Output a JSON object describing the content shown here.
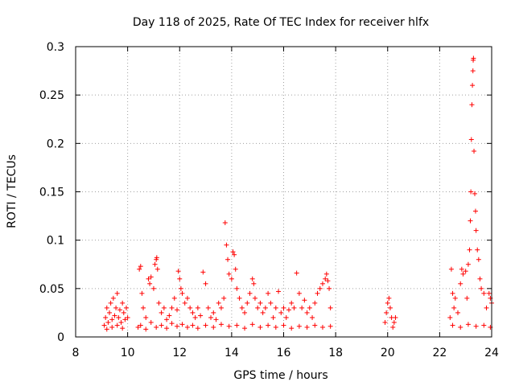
{
  "chart_data": {
    "type": "scatter",
    "title": "Day 118 of 2025, Rate Of TEC Index for receiver hlfx",
    "xlabel": "GPS time / hours",
    "ylabel": "ROTI / TECUs",
    "xlim": [
      8,
      24
    ],
    "ylim": [
      0,
      0.3
    ],
    "xticks": [
      8,
      10,
      12,
      14,
      16,
      18,
      20,
      22,
      24
    ],
    "xtick_labels": [
      "8",
      "10",
      "12",
      "14",
      "16",
      "18",
      "20",
      "22",
      "24"
    ],
    "yticks": [
      0,
      0.05,
      0.1,
      0.15,
      0.2,
      0.25,
      0.3
    ],
    "ytick_labels": [
      "0",
      "0.05",
      "0.1",
      "0.15",
      "0.2",
      "0.25",
      "0.3"
    ],
    "grid": true,
    "marker": "+",
    "color": "#ff0000",
    "series": [
      {
        "name": "ROTI",
        "points": [
          [
            9.1,
            0.012
          ],
          [
            9.15,
            0.02
          ],
          [
            9.2,
            0.03
          ],
          [
            9.25,
            0.015
          ],
          [
            9.3,
            0.025
          ],
          [
            9.35,
            0.035
          ],
          [
            9.4,
            0.018
          ],
          [
            9.45,
            0.04
          ],
          [
            9.5,
            0.022
          ],
          [
            9.55,
            0.03
          ],
          [
            9.6,
            0.045
          ],
          [
            9.65,
            0.02
          ],
          [
            9.7,
            0.028
          ],
          [
            9.75,
            0.015
          ],
          [
            9.8,
            0.035
          ],
          [
            9.85,
            0.025
          ],
          [
            9.9,
            0.018
          ],
          [
            9.95,
            0.03
          ],
          [
            10.0,
            0.02
          ],
          [
            9.2,
            0.008
          ],
          [
            9.4,
            0.01
          ],
          [
            9.6,
            0.012
          ],
          [
            9.8,
            0.009
          ],
          [
            10.4,
            0.01
          ],
          [
            10.45,
            0.07
          ],
          [
            10.5,
            0.073
          ],
          [
            10.55,
            0.045
          ],
          [
            10.6,
            0.03
          ],
          [
            10.7,
            0.02
          ],
          [
            10.8,
            0.06
          ],
          [
            10.85,
            0.055
          ],
          [
            10.9,
            0.062
          ],
          [
            11.0,
            0.05
          ],
          [
            11.05,
            0.075
          ],
          [
            11.1,
            0.08
          ],
          [
            11.12,
            0.082
          ],
          [
            11.15,
            0.07
          ],
          [
            11.2,
            0.035
          ],
          [
            11.3,
            0.025
          ],
          [
            11.4,
            0.03
          ],
          [
            11.5,
            0.018
          ],
          [
            11.6,
            0.022
          ],
          [
            11.7,
            0.03
          ],
          [
            11.8,
            0.04
          ],
          [
            11.9,
            0.028
          ],
          [
            11.95,
            0.068
          ],
          [
            12.0,
            0.06
          ],
          [
            12.05,
            0.05
          ],
          [
            12.1,
            0.045
          ],
          [
            12.2,
            0.035
          ],
          [
            12.3,
            0.04
          ],
          [
            12.4,
            0.03
          ],
          [
            12.5,
            0.025
          ],
          [
            12.6,
            0.02
          ],
          [
            12.7,
            0.03
          ],
          [
            12.8,
            0.022
          ],
          [
            10.5,
            0.012
          ],
          [
            10.7,
            0.008
          ],
          [
            10.9,
            0.015
          ],
          [
            11.1,
            0.01
          ],
          [
            11.3,
            0.012
          ],
          [
            11.5,
            0.009
          ],
          [
            11.7,
            0.014
          ],
          [
            11.9,
            0.011
          ],
          [
            12.1,
            0.013
          ],
          [
            12.3,
            0.01
          ],
          [
            12.5,
            0.012
          ],
          [
            12.7,
            0.009
          ],
          [
            12.9,
            0.067
          ],
          [
            13.0,
            0.055
          ],
          [
            13.1,
            0.03
          ],
          [
            13.2,
            0.02
          ],
          [
            13.3,
            0.025
          ],
          [
            13.4,
            0.018
          ],
          [
            13.5,
            0.035
          ],
          [
            13.6,
            0.03
          ],
          [
            13.7,
            0.04
          ],
          [
            13.75,
            0.118
          ],
          [
            13.8,
            0.095
          ],
          [
            13.85,
            0.08
          ],
          [
            13.9,
            0.065
          ],
          [
            14.0,
            0.06
          ],
          [
            14.05,
            0.088
          ],
          [
            14.1,
            0.085
          ],
          [
            14.15,
            0.07
          ],
          [
            14.2,
            0.05
          ],
          [
            14.3,
            0.04
          ],
          [
            14.4,
            0.03
          ],
          [
            14.5,
            0.025
          ],
          [
            14.6,
            0.035
          ],
          [
            14.7,
            0.045
          ],
          [
            14.8,
            0.06
          ],
          [
            14.85,
            0.055
          ],
          [
            14.9,
            0.04
          ],
          [
            15.0,
            0.03
          ],
          [
            15.1,
            0.035
          ],
          [
            15.2,
            0.025
          ],
          [
            15.3,
            0.03
          ],
          [
            15.4,
            0.045
          ],
          [
            15.5,
            0.035
          ],
          [
            13.0,
            0.012
          ],
          [
            13.3,
            0.01
          ],
          [
            13.6,
            0.013
          ],
          [
            13.9,
            0.011
          ],
          [
            14.2,
            0.012
          ],
          [
            14.5,
            0.009
          ],
          [
            14.8,
            0.013
          ],
          [
            15.1,
            0.01
          ],
          [
            15.4,
            0.012
          ],
          [
            15.6,
            0.02
          ],
          [
            15.7,
            0.03
          ],
          [
            15.8,
            0.047
          ],
          [
            15.9,
            0.025
          ],
          [
            16.0,
            0.03
          ],
          [
            16.1,
            0.02
          ],
          [
            16.2,
            0.028
          ],
          [
            16.3,
            0.035
          ],
          [
            16.4,
            0.03
          ],
          [
            16.5,
            0.066
          ],
          [
            16.6,
            0.045
          ],
          [
            16.7,
            0.03
          ],
          [
            16.8,
            0.038
          ],
          [
            16.9,
            0.025
          ],
          [
            17.0,
            0.03
          ],
          [
            17.1,
            0.02
          ],
          [
            17.2,
            0.035
          ],
          [
            17.3,
            0.045
          ],
          [
            17.4,
            0.05
          ],
          [
            17.5,
            0.055
          ],
          [
            17.6,
            0.06
          ],
          [
            17.65,
            0.065
          ],
          [
            17.7,
            0.058
          ],
          [
            17.75,
            0.05
          ],
          [
            17.8,
            0.03
          ],
          [
            15.7,
            0.01
          ],
          [
            16.0,
            0.012
          ],
          [
            16.3,
            0.009
          ],
          [
            16.6,
            0.011
          ],
          [
            16.9,
            0.01
          ],
          [
            17.2,
            0.012
          ],
          [
            17.5,
            0.01
          ],
          [
            17.8,
            0.011
          ],
          [
            19.9,
            0.015
          ],
          [
            19.95,
            0.025
          ],
          [
            20.0,
            0.035
          ],
          [
            20.05,
            0.04
          ],
          [
            20.1,
            0.03
          ],
          [
            20.15,
            0.02
          ],
          [
            20.2,
            0.01
          ],
          [
            20.25,
            0.015
          ],
          [
            20.3,
            0.02
          ],
          [
            22.4,
            0.02
          ],
          [
            22.45,
            0.07
          ],
          [
            22.5,
            0.045
          ],
          [
            22.55,
            0.03
          ],
          [
            22.6,
            0.04
          ],
          [
            22.7,
            0.025
          ],
          [
            22.8,
            0.055
          ],
          [
            22.85,
            0.07
          ],
          [
            22.9,
            0.065
          ],
          [
            23.0,
            0.068
          ],
          [
            23.05,
            0.04
          ],
          [
            23.1,
            0.075
          ],
          [
            23.15,
            0.09
          ],
          [
            23.18,
            0.12
          ],
          [
            23.2,
            0.15
          ],
          [
            23.22,
            0.204
          ],
          [
            23.24,
            0.24
          ],
          [
            23.26,
            0.26
          ],
          [
            23.28,
            0.275
          ],
          [
            23.29,
            0.286
          ],
          [
            23.3,
            0.288
          ],
          [
            23.32,
            0.192
          ],
          [
            23.35,
            0.148
          ],
          [
            23.38,
            0.13
          ],
          [
            23.4,
            0.11
          ],
          [
            23.45,
            0.09
          ],
          [
            23.5,
            0.08
          ],
          [
            23.55,
            0.06
          ],
          [
            23.6,
            0.05
          ],
          [
            23.7,
            0.045
          ],
          [
            23.8,
            0.03
          ],
          [
            23.9,
            0.045
          ],
          [
            23.95,
            0.04
          ],
          [
            24.0,
            0.035
          ],
          [
            22.5,
            0.012
          ],
          [
            22.8,
            0.01
          ],
          [
            23.1,
            0.013
          ],
          [
            23.4,
            0.011
          ],
          [
            23.7,
            0.012
          ],
          [
            23.95,
            0.01
          ]
        ]
      }
    ]
  }
}
